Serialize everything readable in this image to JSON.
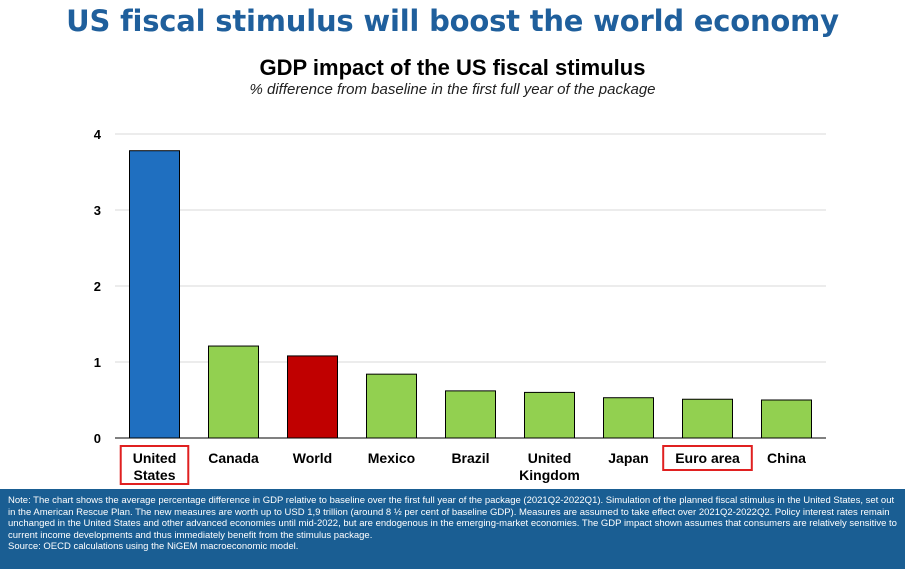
{
  "slide_title": "US fiscal stimulus will boost the world economy",
  "chart_data": {
    "type": "bar",
    "title": "GDP impact of the US fiscal stimulus",
    "subtitle": "% difference from baseline in the first full year of the package",
    "categories": [
      "United States",
      "Canada",
      "World",
      "Mexico",
      "Brazil",
      "United Kingdom",
      "Japan",
      "Euro area",
      "China"
    ],
    "category_lines": [
      [
        "United",
        "States"
      ],
      [
        "Canada"
      ],
      [
        "World"
      ],
      [
        "Mexico"
      ],
      [
        "Brazil"
      ],
      [
        "United",
        "Kingdom"
      ],
      [
        "Japan"
      ],
      [
        "Euro area"
      ],
      [
        "China"
      ]
    ],
    "values": [
      3.78,
      1.21,
      1.08,
      0.84,
      0.62,
      0.6,
      0.53,
      0.51,
      0.5
    ],
    "bar_colors": [
      "#1f6fc0",
      "#92d050",
      "#c00000",
      "#92d050",
      "#92d050",
      "#92d050",
      "#92d050",
      "#92d050",
      "#92d050"
    ],
    "highlighted": [
      "United States",
      "Euro area"
    ],
    "highlight_color": "#e02020",
    "ylim": [
      0,
      4
    ],
    "yticks": [
      0,
      1,
      2,
      3,
      4
    ],
    "grid": true,
    "xlabel": "",
    "ylabel": ""
  },
  "note": {
    "lines": [
      "Note: The chart shows the average percentage difference in GDP relative to baseline over the first full year of the package (2021Q2-2022Q1). Simulation of the planned fiscal stimulus in the United States, set out in the American Rescue Plan. The new measures are worth up to USD 1,9 trillion (around 8 ½ per cent of baseline GDP). Measures are assumed to take effect over 2021Q2-2022Q2. Policy interest rates remain unchanged in the United States and other advanced economies until mid-2022, but are endogenous in the emerging-market economies. The GDP impact shown assumes that consumers are relatively sensitive to current income developments and thus immediately benefit from the stimulus package.",
      "Source: OECD calculations using the NiGEM macroeconomic model."
    ]
  }
}
